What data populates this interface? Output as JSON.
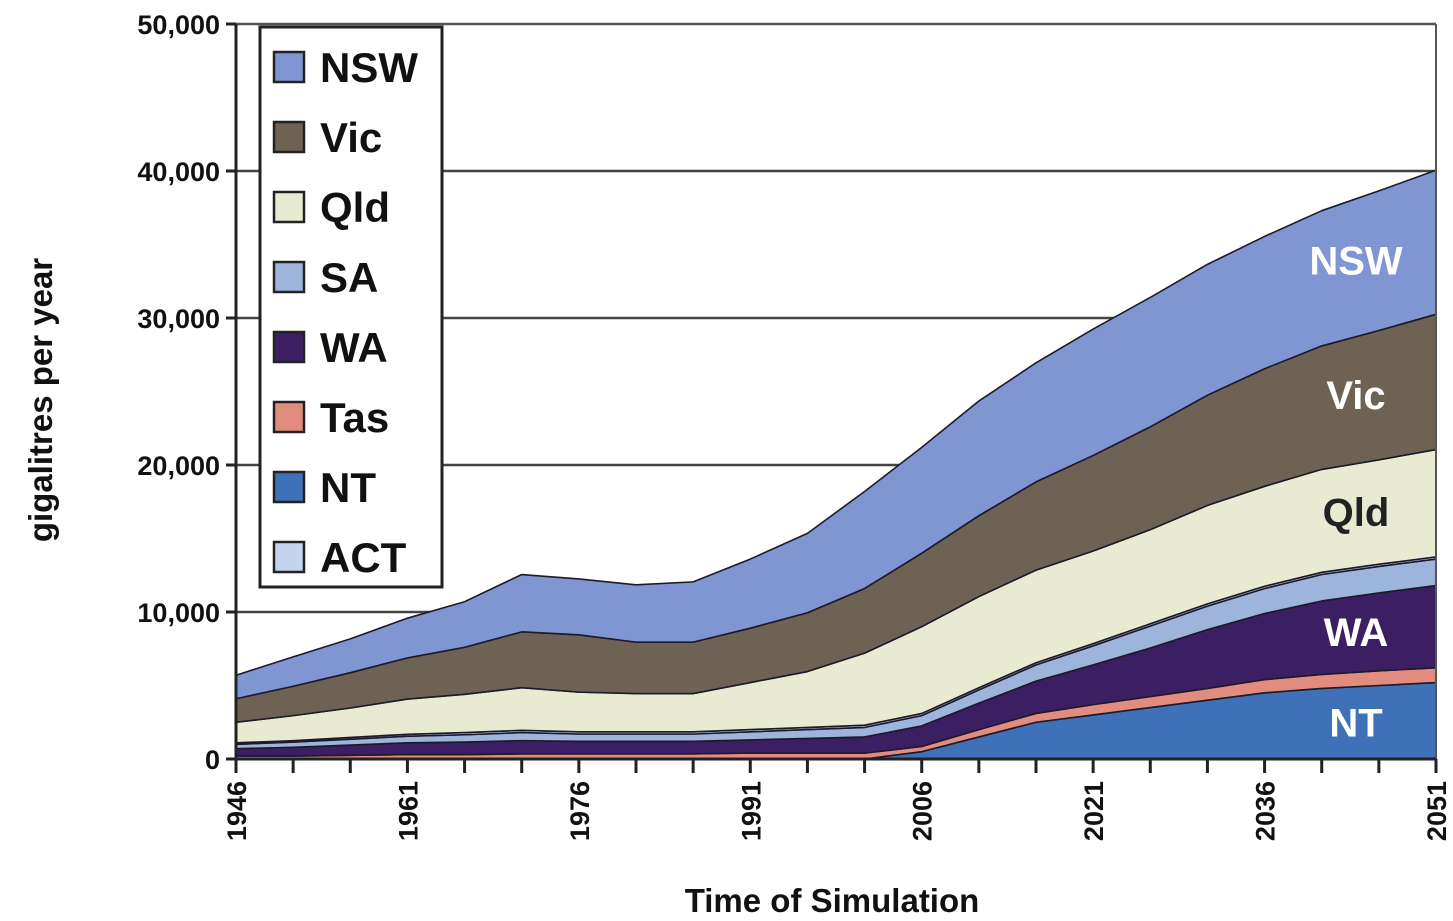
{
  "chart_data": {
    "type": "area",
    "stacked": true,
    "title": "",
    "xlabel": "Time of Simulation",
    "ylabel": "gigalitres per year",
    "ylim": [
      0,
      50000
    ],
    "yticks": [
      0,
      10000,
      20000,
      30000,
      40000,
      50000
    ],
    "ytick_labels": [
      "0",
      "10,000",
      "20,000",
      "30,000",
      "40,000",
      "50,000"
    ],
    "xlim": [
      1946,
      2051
    ],
    "xtick_labels": [
      "1946",
      "1961",
      "1976",
      "1991",
      "2006",
      "2021",
      "2036",
      "2051"
    ],
    "x": [
      1946,
      1951,
      1956,
      1961,
      1966,
      1971,
      1976,
      1981,
      1986,
      1991,
      1996,
      2001,
      2006,
      2011,
      2016,
      2021,
      2026,
      2031,
      2036,
      2041,
      2046,
      2051
    ],
    "grid": true,
    "legend_position": "top-left",
    "series": [
      {
        "name": "NT",
        "color": "#3e71b8",
        "values": [
          0,
          0,
          0,
          0,
          0,
          0,
          0,
          0,
          0,
          0,
          0,
          0,
          500,
          1500,
          2500,
          3000,
          3500,
          4000,
          4500,
          4800,
          5000,
          5200
        ]
      },
      {
        "name": "Tas",
        "color": "#e28c80",
        "values": [
          200,
          200,
          250,
          300,
          300,
          350,
          350,
          350,
          350,
          400,
          400,
          400,
          350,
          500,
          600,
          700,
          750,
          800,
          900,
          950,
          1000,
          1000
        ]
      },
      {
        "name": "WA",
        "color": "#3b1f62",
        "values": [
          500,
          600,
          700,
          800,
          850,
          900,
          850,
          850,
          850,
          900,
          1000,
          1100,
          1400,
          1800,
          2200,
          2700,
          3300,
          4000,
          4500,
          5000,
          5300,
          5600
        ]
      },
      {
        "name": "SA",
        "color": "#9db4dc",
        "values": [
          300,
          350,
          400,
          450,
          500,
          550,
          500,
          500,
          500,
          550,
          600,
          650,
          700,
          900,
          1100,
          1300,
          1500,
          1600,
          1700,
          1800,
          1800,
          1800
        ]
      },
      {
        "name": "ACT",
        "color": "#c5d4ee",
        "values": [
          100,
          100,
          120,
          130,
          150,
          150,
          150,
          150,
          150,
          150,
          150,
          150,
          150,
          150,
          150,
          150,
          150,
          150,
          150,
          150,
          150,
          150
        ]
      },
      {
        "name": "Qld",
        "color": "#e8ebd2",
        "values": [
          1400,
          1700,
          2000,
          2400,
          2600,
          2900,
          2700,
          2600,
          2600,
          3200,
          3800,
          4900,
          5900,
          6200,
          6300,
          6300,
          6400,
          6700,
          6800,
          7000,
          7100,
          7300
        ]
      },
      {
        "name": "Vic",
        "color": "#6e6255",
        "values": [
          1600,
          2000,
          2400,
          2800,
          3200,
          3800,
          3900,
          3500,
          3500,
          3700,
          4000,
          4400,
          5000,
          5500,
          6000,
          6500,
          7000,
          7500,
          8000,
          8400,
          8800,
          9200
        ]
      },
      {
        "name": "NSW",
        "color": "#7f96d2",
        "values": [
          1600,
          2000,
          2300,
          2700,
          3100,
          3900,
          3800,
          3900,
          4100,
          4700,
          5400,
          6600,
          7200,
          7800,
          8100,
          8600,
          8800,
          8900,
          9000,
          9200,
          9500,
          9800
        ]
      }
    ],
    "legend_order": [
      "NSW",
      "Vic",
      "Qld",
      "SA",
      "WA",
      "Tas",
      "NT",
      "ACT"
    ],
    "area_labels": [
      {
        "text": "NSW",
        "series": "NSW"
      },
      {
        "text": "Vic",
        "series": "Vic"
      },
      {
        "text": "Qld",
        "series": "Qld"
      },
      {
        "text": "WA",
        "series": "WA"
      },
      {
        "text": "NT",
        "series": "NT"
      }
    ]
  }
}
